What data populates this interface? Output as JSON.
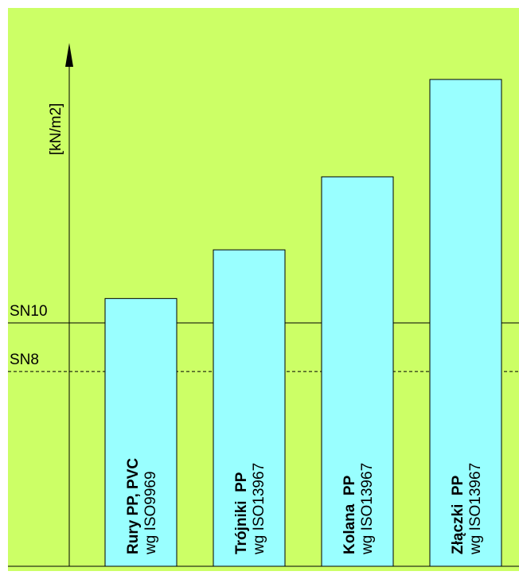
{
  "chart_data": {
    "type": "bar",
    "y_label": "[kN/m2]",
    "categories": [
      "Rury PP, PVC",
      "Trójniki  PP",
      "Kolana  PP",
      "Złączki  PP"
    ],
    "sublabels": [
      "wg ISO9969",
      "wg ISO13967",
      "wg ISO13967",
      "wg ISO13967"
    ],
    "values": [
      11,
      13,
      16,
      20
    ],
    "color": "#99ffff",
    "background": "#ccff66",
    "ylim": [
      0,
      21.5
    ],
    "reference_lines": [
      {
        "value": 10,
        "label": "SN10",
        "style": "solid"
      },
      {
        "value": 8,
        "label": "SN8",
        "style": "dashed"
      }
    ]
  }
}
